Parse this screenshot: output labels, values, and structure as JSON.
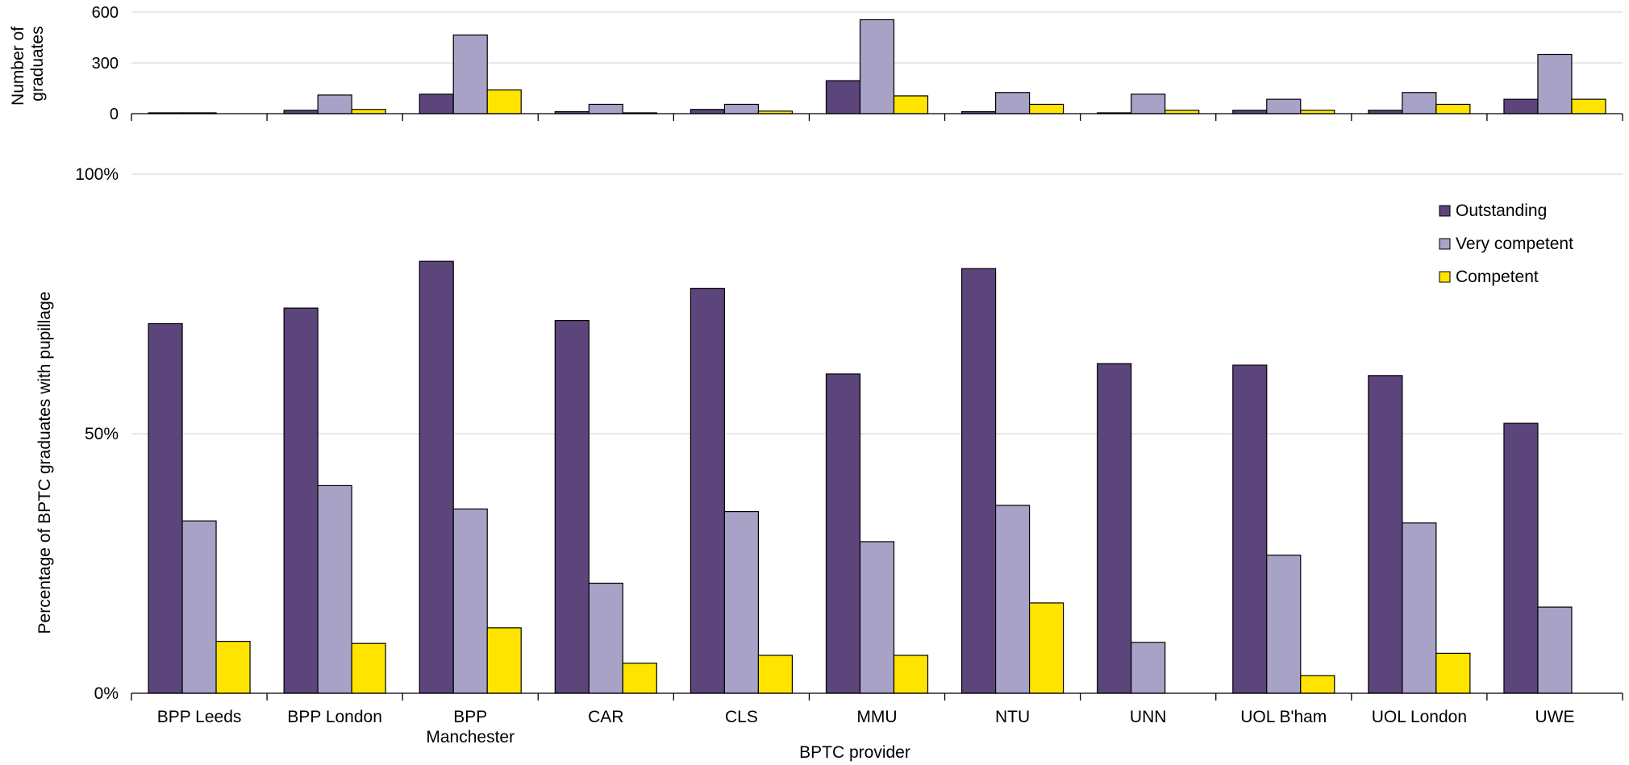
{
  "chart_data": [
    {
      "type": "bar",
      "ylabel": "Number of graduates",
      "ylim": [
        0,
        600
      ],
      "yticks": [
        "0",
        "300",
        "600"
      ],
      "grid": true,
      "categories": [
        "BPP Leeds",
        "BPP London",
        "BPP Manchester",
        "CAR",
        "CLS",
        "MMU",
        "NTU",
        "UNN",
        "UOL B'ham",
        "UOL London",
        "UWE"
      ],
      "series": [
        {
          "name": "Outstanding",
          "values": [
            5,
            20,
            115,
            12,
            25,
            195,
            12,
            5,
            20,
            20,
            85
          ]
        },
        {
          "name": "Very competent",
          "values": [
            5,
            110,
            465,
            55,
            55,
            555,
            125,
            115,
            85,
            125,
            350
          ]
        },
        {
          "name": "Competent",
          "values": [
            0,
            25,
            140,
            5,
            15,
            105,
            55,
            20,
            20,
            55,
            85
          ]
        }
      ]
    },
    {
      "type": "bar",
      "xlabel": "BPTC provider",
      "ylabel": "Percentage of BPTC graduates with pupillage",
      "ylim": [
        0,
        100
      ],
      "yticks": [
        "0%",
        "50%",
        "100%"
      ],
      "grid": true,
      "legend_position": "top-right",
      "categories": [
        "BPP Leeds",
        "BPP London",
        "BPP Manchester",
        "CAR",
        "CLS",
        "MMU",
        "NTU",
        "UNN",
        "UOL B'ham",
        "UOL London",
        "UWE"
      ],
      "series": [
        {
          "name": "Outstanding",
          "values": [
            71.2,
            74.2,
            83.2,
            71.8,
            78,
            61.5,
            81.8,
            63.5,
            63.2,
            61.2,
            52
          ]
        },
        {
          "name": "Very competent",
          "values": [
            33.2,
            40,
            35.5,
            21.2,
            35,
            29.2,
            36.2,
            9.8,
            26.6,
            32.8,
            16.6
          ]
        },
        {
          "name": "Competent",
          "values": [
            10,
            9.6,
            12.6,
            5.8,
            7.3,
            7.3,
            17.4,
            0,
            3.4,
            7.7,
            0
          ]
        }
      ]
    }
  ],
  "legend": {
    "items": [
      "Outstanding",
      "Very competent",
      "Competent"
    ]
  },
  "colors": {
    "Outstanding": "#5b457a",
    "Very competent": "#a7a2c6",
    "Competent": "#ffe400",
    "gridline": "#d9d9d9"
  }
}
